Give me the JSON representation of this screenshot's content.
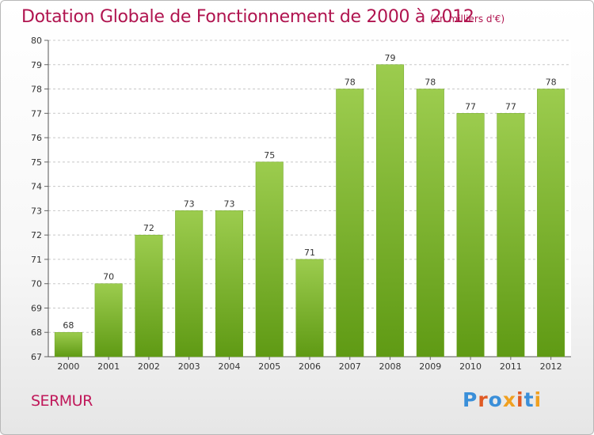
{
  "header": {
    "title": "Dotation Globale de Fonctionnement de 2000 à 2012",
    "subtitle": "(en milliers d'€)"
  },
  "footer": {
    "commune": "SERMUR",
    "logo": "Proxiti"
  },
  "colors": {
    "title": "#b0144f",
    "bar_light": "#9ccc4e",
    "bar_dark": "#5f9a14",
    "logo": [
      "#3a8fd9",
      "#e05a24",
      "#3a8fd9",
      "#f0a020",
      "#e05a24",
      "#3a8fd9",
      "#f0a020"
    ]
  },
  "chart_data": {
    "type": "bar",
    "title": "Dotation Globale de Fonctionnement de 2000 à 2012",
    "subtitle": "(en milliers d'€)",
    "categories": [
      "2000",
      "2001",
      "2002",
      "2003",
      "2004",
      "2005",
      "2006",
      "2007",
      "2008",
      "2009",
      "2010",
      "2011",
      "2012"
    ],
    "values": [
      68,
      70,
      72,
      73,
      73,
      75,
      71,
      78,
      79,
      78,
      77,
      77,
      78
    ],
    "ylim": [
      67,
      80
    ],
    "yticks": [
      67,
      68,
      69,
      70,
      71,
      72,
      73,
      74,
      75,
      76,
      77,
      78,
      79,
      80
    ],
    "grid": true,
    "xlabel": "",
    "ylabel": ""
  }
}
